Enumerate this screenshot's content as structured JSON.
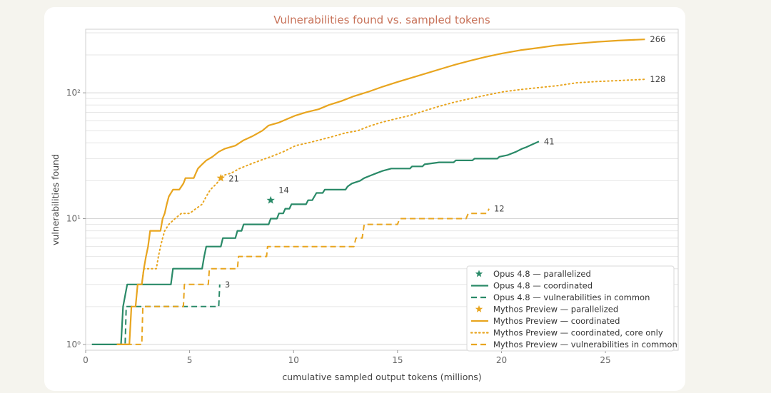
{
  "chart_data": {
    "type": "line",
    "title": "Vulnerabilities found vs. sampled tokens",
    "xlabel": "cumulative sampled output tokens (millions)",
    "ylabel": "vulnerabilities found",
    "xlim": [
      0,
      28.5
    ],
    "ylim": [
      0.9,
      320
    ],
    "yscale": "log",
    "grid": true,
    "legend_position": "bottom-right",
    "x_ticks": [
      0,
      5,
      10,
      15,
      20,
      25
    ],
    "x_tick_labels": [
      "0",
      "5",
      "10",
      "15",
      "20",
      "25"
    ],
    "y_ticks": [
      1,
      10,
      100
    ],
    "y_tick_labels": [
      "10⁰",
      "10¹",
      "10²"
    ],
    "colors": {
      "opus": "#2a8a68",
      "mythos": "#e8a51f"
    },
    "series": [
      {
        "name": "Opus 4.8 — parallelized",
        "model": "opus",
        "style": "star",
        "points": [
          [
            8.9,
            14
          ]
        ],
        "end_label": "14"
      },
      {
        "name": "Opus 4.8 — coordinated",
        "model": "opus",
        "style": "solid",
        "points": [
          [
            0.3,
            1
          ],
          [
            1.7,
            1
          ],
          [
            1.8,
            2
          ],
          [
            2.0,
            3
          ],
          [
            4.1,
            3
          ],
          [
            4.2,
            4
          ],
          [
            5.6,
            4
          ],
          [
            5.7,
            5
          ],
          [
            5.8,
            6
          ],
          [
            6.5,
            6
          ],
          [
            6.6,
            7
          ],
          [
            7.2,
            7
          ],
          [
            7.3,
            8
          ],
          [
            7.5,
            8
          ],
          [
            7.6,
            9
          ],
          [
            8.8,
            9
          ],
          [
            8.9,
            10
          ],
          [
            9.2,
            10
          ],
          [
            9.3,
            11
          ],
          [
            9.5,
            11
          ],
          [
            9.6,
            12
          ],
          [
            9.8,
            12
          ],
          [
            9.9,
            13
          ],
          [
            10.6,
            13
          ],
          [
            10.7,
            14
          ],
          [
            10.9,
            14
          ],
          [
            11.0,
            15
          ],
          [
            11.1,
            16
          ],
          [
            11.4,
            16
          ],
          [
            11.5,
            17
          ],
          [
            12.5,
            17
          ],
          [
            12.6,
            18
          ],
          [
            12.8,
            19
          ],
          [
            13.2,
            20
          ],
          [
            13.4,
            21
          ],
          [
            13.7,
            22
          ],
          [
            14.0,
            23
          ],
          [
            14.3,
            24
          ],
          [
            14.7,
            25
          ],
          [
            15.6,
            25
          ],
          [
            15.7,
            26
          ],
          [
            16.2,
            26
          ],
          [
            16.3,
            27
          ],
          [
            17.0,
            28
          ],
          [
            17.7,
            28
          ],
          [
            17.8,
            29
          ],
          [
            18.6,
            29
          ],
          [
            18.7,
            30
          ],
          [
            19.8,
            30
          ],
          [
            19.9,
            31
          ],
          [
            20.3,
            32
          ],
          [
            20.7,
            34
          ],
          [
            21.0,
            36
          ],
          [
            21.2,
            37
          ],
          [
            21.5,
            39
          ],
          [
            21.8,
            41
          ]
        ],
        "end_label": "41"
      },
      {
        "name": "Opus 4.8 — vulnerabilities in common",
        "model": "opus",
        "style": "dashed",
        "points": [
          [
            1.5,
            1
          ],
          [
            1.9,
            1
          ],
          [
            1.95,
            2
          ],
          [
            6.4,
            2
          ],
          [
            6.45,
            3
          ]
        ],
        "end_label": "3"
      },
      {
        "name": "Mythos Preview — parallelized",
        "model": "mythos",
        "style": "star",
        "points": [
          [
            6.5,
            21
          ]
        ],
        "end_label": "21"
      },
      {
        "name": "Mythos Preview — coordinated",
        "model": "mythos",
        "style": "solid",
        "points": [
          [
            1.5,
            1
          ],
          [
            2.1,
            1
          ],
          [
            2.2,
            2
          ],
          [
            2.4,
            2
          ],
          [
            2.5,
            3
          ],
          [
            2.7,
            3
          ],
          [
            2.8,
            4
          ],
          [
            2.9,
            5
          ],
          [
            3.0,
            6
          ],
          [
            3.1,
            8
          ],
          [
            3.6,
            8
          ],
          [
            3.7,
            10
          ],
          [
            3.8,
            11
          ],
          [
            3.9,
            13
          ],
          [
            4.0,
            15
          ],
          [
            4.2,
            17
          ],
          [
            4.5,
            17
          ],
          [
            4.7,
            19
          ],
          [
            4.8,
            21
          ],
          [
            5.2,
            21
          ],
          [
            5.3,
            23
          ],
          [
            5.4,
            25
          ],
          [
            5.6,
            27
          ],
          [
            5.8,
            29
          ],
          [
            6.1,
            31
          ],
          [
            6.4,
            34
          ],
          [
            6.7,
            36
          ],
          [
            7.2,
            38
          ],
          [
            7.6,
            42
          ],
          [
            8.0,
            45
          ],
          [
            8.5,
            50
          ],
          [
            8.8,
            55
          ],
          [
            9.3,
            58
          ],
          [
            9.7,
            62
          ],
          [
            10.1,
            66
          ],
          [
            10.6,
            70
          ],
          [
            11.2,
            74
          ],
          [
            11.7,
            80
          ],
          [
            12.3,
            86
          ],
          [
            12.9,
            94
          ],
          [
            13.6,
            102
          ],
          [
            14.3,
            112
          ],
          [
            15.0,
            122
          ],
          [
            15.7,
            132
          ],
          [
            16.4,
            143
          ],
          [
            17.1,
            155
          ],
          [
            17.8,
            168
          ],
          [
            18.5,
            180
          ],
          [
            19.2,
            192
          ],
          [
            20.0,
            205
          ],
          [
            20.9,
            218
          ],
          [
            21.8,
            228
          ],
          [
            22.6,
            238
          ],
          [
            23.6,
            246
          ],
          [
            24.6,
            254
          ],
          [
            25.6,
            260
          ],
          [
            26.5,
            264
          ],
          [
            26.9,
            266
          ]
        ],
        "end_label": "266"
      },
      {
        "name": "Mythos Preview — coordinated, core only",
        "model": "mythos",
        "style": "dotted",
        "points": [
          [
            2.7,
            3
          ],
          [
            2.8,
            4
          ],
          [
            3.4,
            4
          ],
          [
            3.5,
            5
          ],
          [
            3.6,
            6
          ],
          [
            3.7,
            7
          ],
          [
            3.8,
            8
          ],
          [
            4.0,
            9
          ],
          [
            4.3,
            10
          ],
          [
            4.6,
            11
          ],
          [
            5.0,
            11
          ],
          [
            5.3,
            12
          ],
          [
            5.6,
            13
          ],
          [
            5.8,
            15
          ],
          [
            6.0,
            17
          ],
          [
            6.3,
            19
          ],
          [
            6.6,
            22
          ],
          [
            7.0,
            23
          ],
          [
            7.4,
            25
          ],
          [
            7.9,
            27
          ],
          [
            8.4,
            29
          ],
          [
            8.9,
            31
          ],
          [
            9.5,
            34
          ],
          [
            10.1,
            38
          ],
          [
            10.7,
            40
          ],
          [
            11.2,
            42
          ],
          [
            11.9,
            45
          ],
          [
            12.5,
            48
          ],
          [
            13.1,
            50
          ],
          [
            13.6,
            54
          ],
          [
            14.2,
            58
          ],
          [
            14.9,
            62
          ],
          [
            15.6,
            66
          ],
          [
            16.3,
            72
          ],
          [
            17.0,
            78
          ],
          [
            17.7,
            84
          ],
          [
            18.5,
            90
          ],
          [
            19.3,
            96
          ],
          [
            20.1,
            102
          ],
          [
            20.9,
            106
          ],
          [
            21.8,
            110
          ],
          [
            22.7,
            114
          ],
          [
            23.6,
            120
          ],
          [
            24.6,
            123
          ],
          [
            25.6,
            125
          ],
          [
            26.9,
            128
          ]
        ],
        "end_label": "128"
      },
      {
        "name": "Mythos Preview — vulnerabilities in common",
        "model": "mythos",
        "style": "dashed",
        "points": [
          [
            1.5,
            1
          ],
          [
            2.7,
            1
          ],
          [
            2.75,
            2
          ],
          [
            4.7,
            2
          ],
          [
            4.75,
            3
          ],
          [
            5.9,
            3
          ],
          [
            5.95,
            4
          ],
          [
            7.3,
            4
          ],
          [
            7.35,
            5
          ],
          [
            8.7,
            5
          ],
          [
            8.75,
            6
          ],
          [
            12.9,
            6
          ],
          [
            13.0,
            7
          ],
          [
            13.3,
            7
          ],
          [
            13.4,
            9
          ],
          [
            15.0,
            9
          ],
          [
            15.1,
            10
          ],
          [
            18.3,
            10
          ],
          [
            18.4,
            11
          ],
          [
            19.3,
            11
          ],
          [
            19.4,
            12
          ]
        ],
        "end_label": "12"
      }
    ]
  }
}
